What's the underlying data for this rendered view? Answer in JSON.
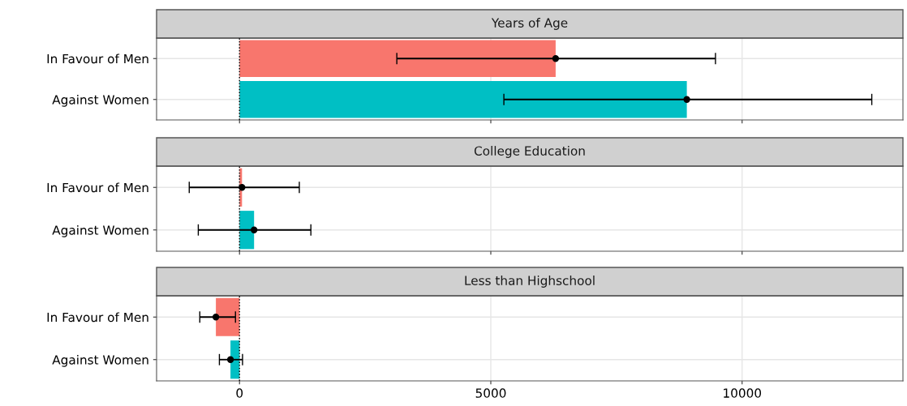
{
  "chart_data": [
    {
      "type": "bar",
      "orientation": "horizontal",
      "title": "Years of Age",
      "categories": [
        "In Favour of Men",
        "Against Women"
      ],
      "series": [
        {
          "values": [
            6290,
            8900
          ],
          "colors": [
            "#f8766d",
            "#00bfc4"
          ],
          "errors": [
            [
              3130,
              9470
            ],
            [
              5260,
              12580
            ]
          ]
        },
        {
          "type": "scatter",
          "values": [
            6290,
            8900
          ],
          "color": "#000000",
          "marker": "circle"
        }
      ],
      "xlim": [
        -1650,
        13200
      ],
      "xticks": [
        {
          "value": 0,
          "label": null
        },
        {
          "value": 5000,
          "label": null
        },
        {
          "value": 10000,
          "label": null
        }
      ],
      "tick_labels": "y",
      "grid": true,
      "ref_lines": [
        {
          "axis": "x",
          "value": 0,
          "line_style": "dotted",
          "color": "#000000"
        }
      ]
    },
    {
      "type": "bar",
      "orientation": "horizontal",
      "title": "College Education",
      "categories": [
        "In Favour of Men",
        "Against Women"
      ],
      "series": [
        {
          "values": [
            50,
            290
          ],
          "colors": [
            "#f8766d",
            "#00bfc4"
          ],
          "errors": [
            [
              -1000,
              1190
            ],
            [
              -820,
              1420
            ]
          ]
        },
        {
          "type": "scatter",
          "values": [
            50,
            290
          ],
          "color": "#000000",
          "marker": "circle"
        }
      ],
      "xlim": [
        -1650,
        13200
      ],
      "xticks": [
        {
          "value": 0,
          "label": null
        },
        {
          "value": 5000,
          "label": null
        },
        {
          "value": 10000,
          "label": null
        }
      ],
      "tick_labels": "y",
      "grid": true,
      "ref_lines": [
        {
          "axis": "x",
          "value": 0,
          "line_style": "dotted",
          "color": "#000000"
        }
      ]
    },
    {
      "type": "bar",
      "orientation": "horizontal",
      "title": "Less than Highschool",
      "categories": [
        "In Favour of Men",
        "Against Women"
      ],
      "series": [
        {
          "values": [
            -470,
            -180
          ],
          "colors": [
            "#f8766d",
            "#00bfc4"
          ],
          "errors": [
            [
              -790,
              -80
            ],
            [
              -400,
              60
            ]
          ]
        },
        {
          "type": "scatter",
          "values": [
            -470,
            -180
          ],
          "color": "#000000",
          "marker": "circle"
        }
      ],
      "xlim": [
        -1650,
        13200
      ],
      "xticks": [
        0,
        5000,
        10000
      ],
      "grid": true,
      "ref_lines": [
        {
          "axis": "x",
          "value": 0,
          "line_style": "dotted",
          "color": "#000000"
        }
      ]
    }
  ]
}
